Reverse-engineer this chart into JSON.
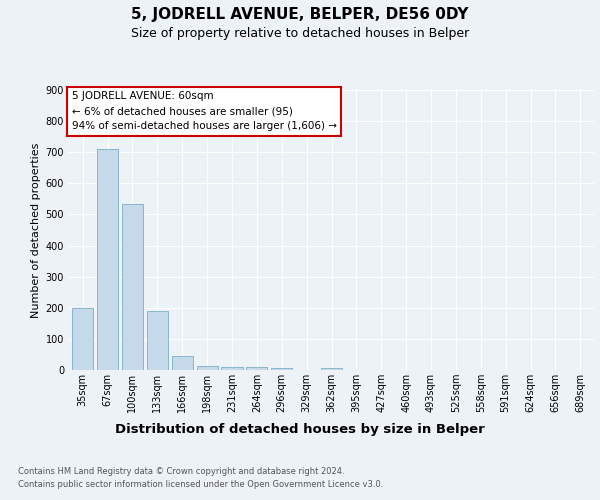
{
  "title": "5, JODRELL AVENUE, BELPER, DE56 0DY",
  "subtitle": "Size of property relative to detached houses in Belper",
  "xlabel": "Distribution of detached houses by size in Belper",
  "ylabel": "Number of detached properties",
  "categories": [
    "35sqm",
    "67sqm",
    "100sqm",
    "133sqm",
    "166sqm",
    "198sqm",
    "231sqm",
    "264sqm",
    "296sqm",
    "329sqm",
    "362sqm",
    "395sqm",
    "427sqm",
    "460sqm",
    "493sqm",
    "525sqm",
    "558sqm",
    "591sqm",
    "624sqm",
    "656sqm",
    "689sqm"
  ],
  "values": [
    200,
    710,
    535,
    190,
    45,
    13,
    11,
    10,
    8,
    0,
    8,
    0,
    0,
    0,
    0,
    0,
    0,
    0,
    0,
    0,
    0
  ],
  "bar_color": "#c6d9ea",
  "bar_edge_color": "#7aafc8",
  "ylim": [
    0,
    900
  ],
  "yticks": [
    0,
    100,
    200,
    300,
    400,
    500,
    600,
    700,
    800,
    900
  ],
  "annotation_line1": "5 JODRELL AVENUE: 60sqm",
  "annotation_line2": "← 6% of detached houses are smaller (95)",
  "annotation_line3": "94% of semi-detached houses are larger (1,606) →",
  "footnote1": "Contains HM Land Registry data © Crown copyright and database right 2024.",
  "footnote2": "Contains public sector information licensed under the Open Government Licence v3.0.",
  "bg_color": "#edf2f7",
  "title_fontsize": 11,
  "subtitle_fontsize": 9,
  "xlabel_fontsize": 9.5,
  "ylabel_fontsize": 8,
  "tick_fontsize": 7,
  "ann_fontsize": 7.5,
  "footnote_fontsize": 6
}
